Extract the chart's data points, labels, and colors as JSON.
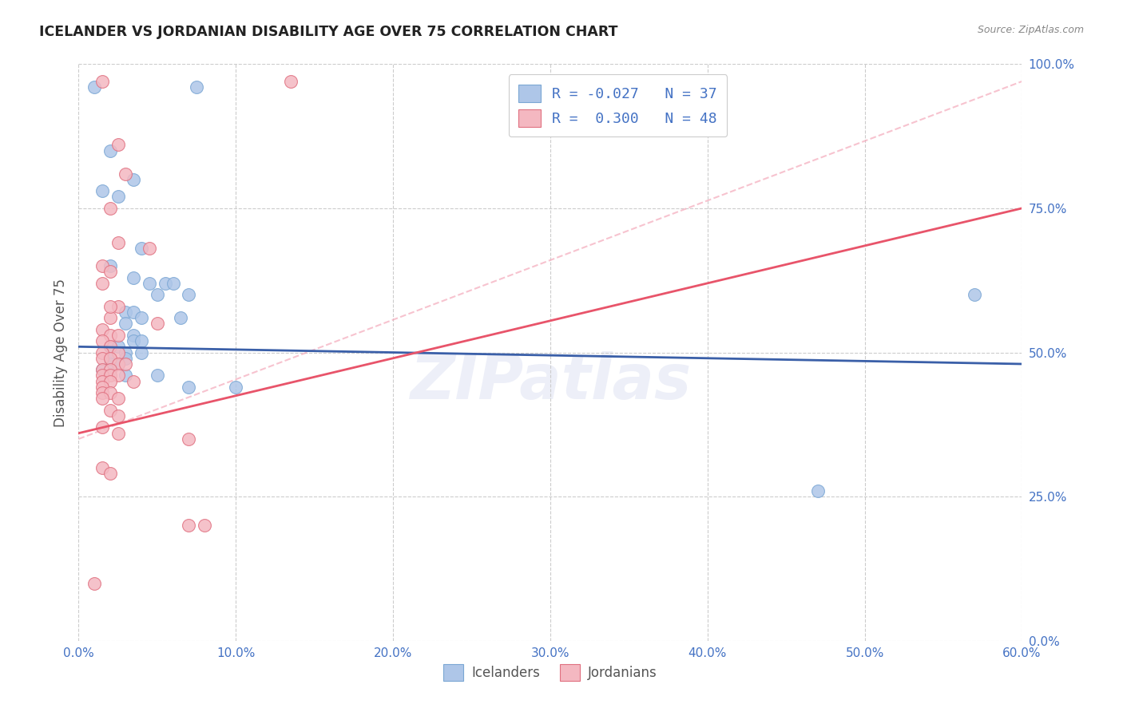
{
  "title": "ICELANDER VS JORDANIAN DISABILITY AGE OVER 75 CORRELATION CHART",
  "source": "Source: ZipAtlas.com",
  "ylabel_label": "Disability Age Over 75",
  "icelander_color": "#aec6e8",
  "jordanian_color": "#f4b8c1",
  "icelander_edge_color": "#7ba7d4",
  "jordanian_edge_color": "#e07080",
  "icelander_line_color": "#3a5fa8",
  "jordanian_line_color": "#e8546a",
  "dashed_line_color": "#f4aabb",
  "watermark": "ZIPatlas",
  "tick_color": "#4472c4",
  "grid_color": "#cccccc",
  "title_color": "#222222",
  "source_color": "#888888",
  "icelander_points": [
    [
      1.0,
      96
    ],
    [
      7.5,
      96
    ],
    [
      2.0,
      85
    ],
    [
      3.5,
      80
    ],
    [
      1.5,
      78
    ],
    [
      2.5,
      77
    ],
    [
      4.0,
      68
    ],
    [
      2.0,
      65
    ],
    [
      3.5,
      63
    ],
    [
      4.5,
      62
    ],
    [
      5.5,
      62
    ],
    [
      6.0,
      62
    ],
    [
      5.0,
      60
    ],
    [
      7.0,
      60
    ],
    [
      3.0,
      57
    ],
    [
      3.5,
      57
    ],
    [
      4.0,
      56
    ],
    [
      6.5,
      56
    ],
    [
      3.0,
      55
    ],
    [
      3.5,
      53
    ],
    [
      3.5,
      52
    ],
    [
      4.0,
      52
    ],
    [
      2.0,
      51
    ],
    [
      2.5,
      51
    ],
    [
      3.0,
      50
    ],
    [
      4.0,
      50
    ],
    [
      2.0,
      49
    ],
    [
      3.0,
      49
    ],
    [
      2.0,
      48
    ],
    [
      2.5,
      48
    ],
    [
      1.5,
      47
    ],
    [
      2.0,
      47
    ],
    [
      3.0,
      46
    ],
    [
      5.0,
      46
    ],
    [
      7.0,
      44
    ],
    [
      10.0,
      44
    ],
    [
      47.0,
      26
    ],
    [
      57.0,
      60
    ]
  ],
  "jordanian_points": [
    [
      1.5,
      97
    ],
    [
      13.5,
      97
    ],
    [
      2.5,
      86
    ],
    [
      3.0,
      81
    ],
    [
      2.0,
      75
    ],
    [
      2.5,
      69
    ],
    [
      1.5,
      65
    ],
    [
      2.0,
      64
    ],
    [
      1.5,
      62
    ],
    [
      2.5,
      58
    ],
    [
      2.0,
      56
    ],
    [
      1.5,
      54
    ],
    [
      2.0,
      53
    ],
    [
      1.5,
      52
    ],
    [
      2.0,
      51
    ],
    [
      1.5,
      50
    ],
    [
      2.5,
      50
    ],
    [
      1.5,
      49
    ],
    [
      2.0,
      49
    ],
    [
      2.5,
      48
    ],
    [
      1.5,
      47
    ],
    [
      2.0,
      47
    ],
    [
      1.5,
      46
    ],
    [
      2.0,
      46
    ],
    [
      2.5,
      46
    ],
    [
      1.5,
      45
    ],
    [
      2.0,
      45
    ],
    [
      1.5,
      44
    ],
    [
      1.5,
      43
    ],
    [
      2.0,
      43
    ],
    [
      1.5,
      42
    ],
    [
      2.5,
      42
    ],
    [
      2.0,
      40
    ],
    [
      2.5,
      39
    ],
    [
      1.5,
      37
    ],
    [
      2.5,
      36
    ],
    [
      7.0,
      35
    ],
    [
      1.5,
      30
    ],
    [
      2.0,
      29
    ],
    [
      7.0,
      20
    ],
    [
      8.0,
      20
    ],
    [
      1.0,
      10
    ],
    [
      4.5,
      68
    ],
    [
      2.0,
      58
    ],
    [
      5.0,
      55
    ],
    [
      2.5,
      53
    ],
    [
      3.0,
      48
    ],
    [
      3.5,
      45
    ]
  ],
  "xlim": [
    0,
    60
  ],
  "ylim": [
    0,
    100
  ],
  "x_ticks_pct": [
    0,
    10,
    20,
    30,
    40,
    50,
    60
  ],
  "y_ticks_pct": [
    0,
    25,
    50,
    75,
    100
  ],
  "icelander_line_x": [
    0,
    60
  ],
  "icelander_line_y": [
    51,
    48
  ],
  "jordanian_line_x": [
    0,
    60
  ],
  "jordanian_line_y": [
    36,
    75
  ],
  "dashed_line_x": [
    0,
    60
  ],
  "dashed_line_y": [
    35,
    97
  ]
}
